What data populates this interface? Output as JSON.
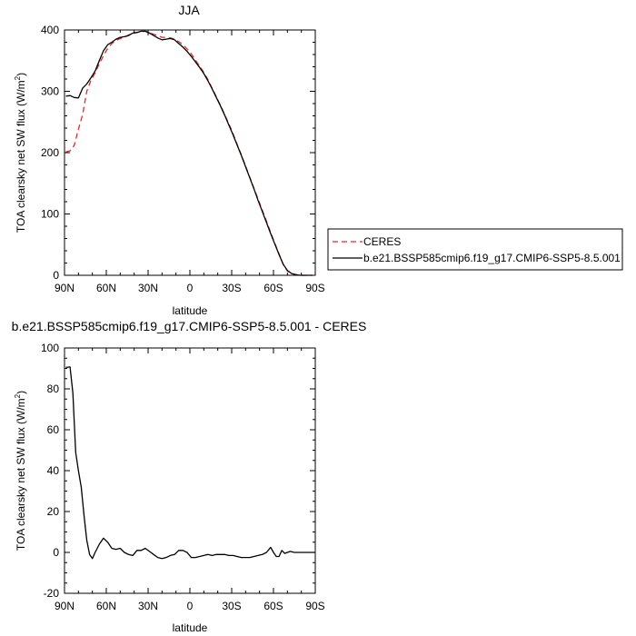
{
  "chart_data": [
    {
      "type": "line",
      "title": "JJA",
      "xlabel": "latitude",
      "ylabel_main": "TOA clearsky net SW flux (W/m",
      "ylabel_sup": "2",
      "ylabel_end": ")",
      "xlim": [
        90,
        -90
      ],
      "ylim": [
        0,
        400
      ],
      "x_ticks": [
        90,
        60,
        30,
        0,
        -30,
        -60,
        -90
      ],
      "x_tick_labels": [
        "90N",
        "60N",
        "30N",
        "0",
        "30S",
        "60S",
        "90S"
      ],
      "y_ticks": [
        0,
        100,
        200,
        300,
        400
      ],
      "y_tick_labels": [
        "0",
        "100",
        "200",
        "300",
        "400"
      ],
      "grid": false,
      "legend": "right",
      "series": [
        {
          "name": "CERES",
          "color": "#e8262a",
          "dash": "dashed",
          "x": [
            89,
            86,
            83,
            80,
            77,
            74,
            71,
            68,
            65,
            62,
            59,
            56,
            53,
            50,
            47,
            44,
            41,
            38,
            35,
            32,
            29,
            26,
            23,
            20,
            17,
            14,
            11,
            8,
            5,
            2,
            -1,
            -4,
            -7,
            -10,
            -13,
            -16,
            -19,
            -22,
            -25,
            -28,
            -31,
            -34,
            -37,
            -40,
            -43,
            -46,
            -49,
            -52,
            -55,
            -58,
            -61,
            -64,
            -67,
            -70,
            -73,
            -76,
            -79,
            -82,
            -85,
            -88
          ],
          "y": [
            201,
            203,
            212,
            238,
            262,
            300,
            318,
            330,
            345,
            358,
            370,
            378,
            383,
            386,
            388,
            392,
            394,
            396,
            397,
            398,
            396,
            393,
            391,
            388,
            388,
            387,
            385,
            381,
            376,
            369,
            361,
            351,
            341,
            331,
            319,
            305,
            291,
            277,
            262,
            247,
            231,
            213,
            196,
            178,
            160,
            142,
            124,
            106,
            88,
            70,
            52,
            35,
            18,
            7,
            3,
            1,
            0,
            0,
            0,
            0
          ]
        },
        {
          "name": "b.e21.BSSP585cmip6.f19_g17.CMIP6-SSP5-8.5.001",
          "color": "#000000",
          "dash": "solid",
          "x": [
            89,
            86,
            83,
            80,
            77,
            74,
            71,
            68,
            65,
            62,
            59,
            56,
            53,
            50,
            47,
            44,
            41,
            38,
            35,
            32,
            29,
            26,
            23,
            20,
            17,
            14,
            11,
            8,
            5,
            2,
            -1,
            -4,
            -7,
            -10,
            -13,
            -16,
            -19,
            -22,
            -25,
            -28,
            -31,
            -34,
            -37,
            -40,
            -43,
            -46,
            -49,
            -52,
            -55,
            -58,
            -61,
            -64,
            -67,
            -70,
            -73,
            -76,
            -79,
            -82,
            -85,
            -88
          ],
          "y": [
            292,
            293,
            290,
            289,
            305,
            312,
            322,
            333,
            350,
            366,
            376,
            380,
            385,
            388,
            389,
            391,
            395,
            396,
            398,
            398,
            395,
            391,
            387,
            384,
            385,
            386,
            384,
            378,
            372,
            365,
            357,
            348,
            339,
            329,
            317,
            304,
            290,
            276,
            261,
            245,
            229,
            212,
            195,
            177,
            159,
            141,
            122,
            104,
            86,
            68,
            51,
            34,
            18,
            8,
            3,
            1,
            0,
            0,
            0,
            0
          ]
        }
      ]
    },
    {
      "type": "line",
      "title": "b.e21.BSSP585cmip6.f19_g17.CMIP6-SSP5-8.5.001 - CERES",
      "xlabel": "latitude",
      "ylabel_main": "TOA clearsky net SW flux (W/m",
      "ylabel_sup": "2",
      "ylabel_end": ")",
      "xlim": [
        90,
        -90
      ],
      "ylim": [
        -20,
        100
      ],
      "x_ticks": [
        90,
        60,
        30,
        0,
        -30,
        -60,
        -90
      ],
      "x_tick_labels": [
        "90N",
        "60N",
        "30N",
        "0",
        "30S",
        "60S",
        "90S"
      ],
      "y_ticks": [
        -20,
        0,
        20,
        40,
        60,
        80,
        100
      ],
      "y_tick_labels": [
        "-20",
        "0",
        "20",
        "40",
        "60",
        "80",
        "100"
      ],
      "grid": false,
      "series": [
        {
          "color": "#000000",
          "dash": "solid",
          "x": [
            89,
            86,
            84,
            82,
            80,
            78,
            76,
            74,
            72,
            70,
            68,
            65,
            62,
            59,
            56,
            53,
            50,
            47,
            44,
            41,
            38,
            35,
            32,
            29,
            26,
            23,
            20,
            17,
            14,
            11,
            8,
            5,
            2,
            -1,
            -4,
            -7,
            -10,
            -13,
            -16,
            -19,
            -22,
            -25,
            -28,
            -31,
            -34,
            -37,
            -40,
            -43,
            -46,
            -49,
            -52,
            -55,
            -58,
            -60,
            -62,
            -64,
            -66,
            -68,
            -70,
            -72,
            -75,
            -80,
            -85,
            -90
          ],
          "y": [
            90.5,
            90.7,
            78,
            49,
            40,
            32,
            18,
            6,
            -1,
            -3,
            0,
            4,
            7,
            5,
            2,
            1.5,
            2,
            0,
            -1,
            -1.5,
            1,
            1,
            2,
            0.5,
            -1,
            -2.5,
            -3,
            -2.5,
            -1.5,
            -1,
            1,
            1,
            0,
            -2.5,
            -2.5,
            -2,
            -1.5,
            -1,
            -1.5,
            -1,
            -1,
            -1,
            -1.5,
            -1.5,
            -2,
            -2.5,
            -2.5,
            -2.5,
            -2,
            -1.5,
            -1,
            0,
            2.5,
            0,
            -2,
            -2,
            1,
            -0.5,
            0,
            0.5,
            0,
            0,
            0,
            0
          ]
        }
      ]
    }
  ]
}
